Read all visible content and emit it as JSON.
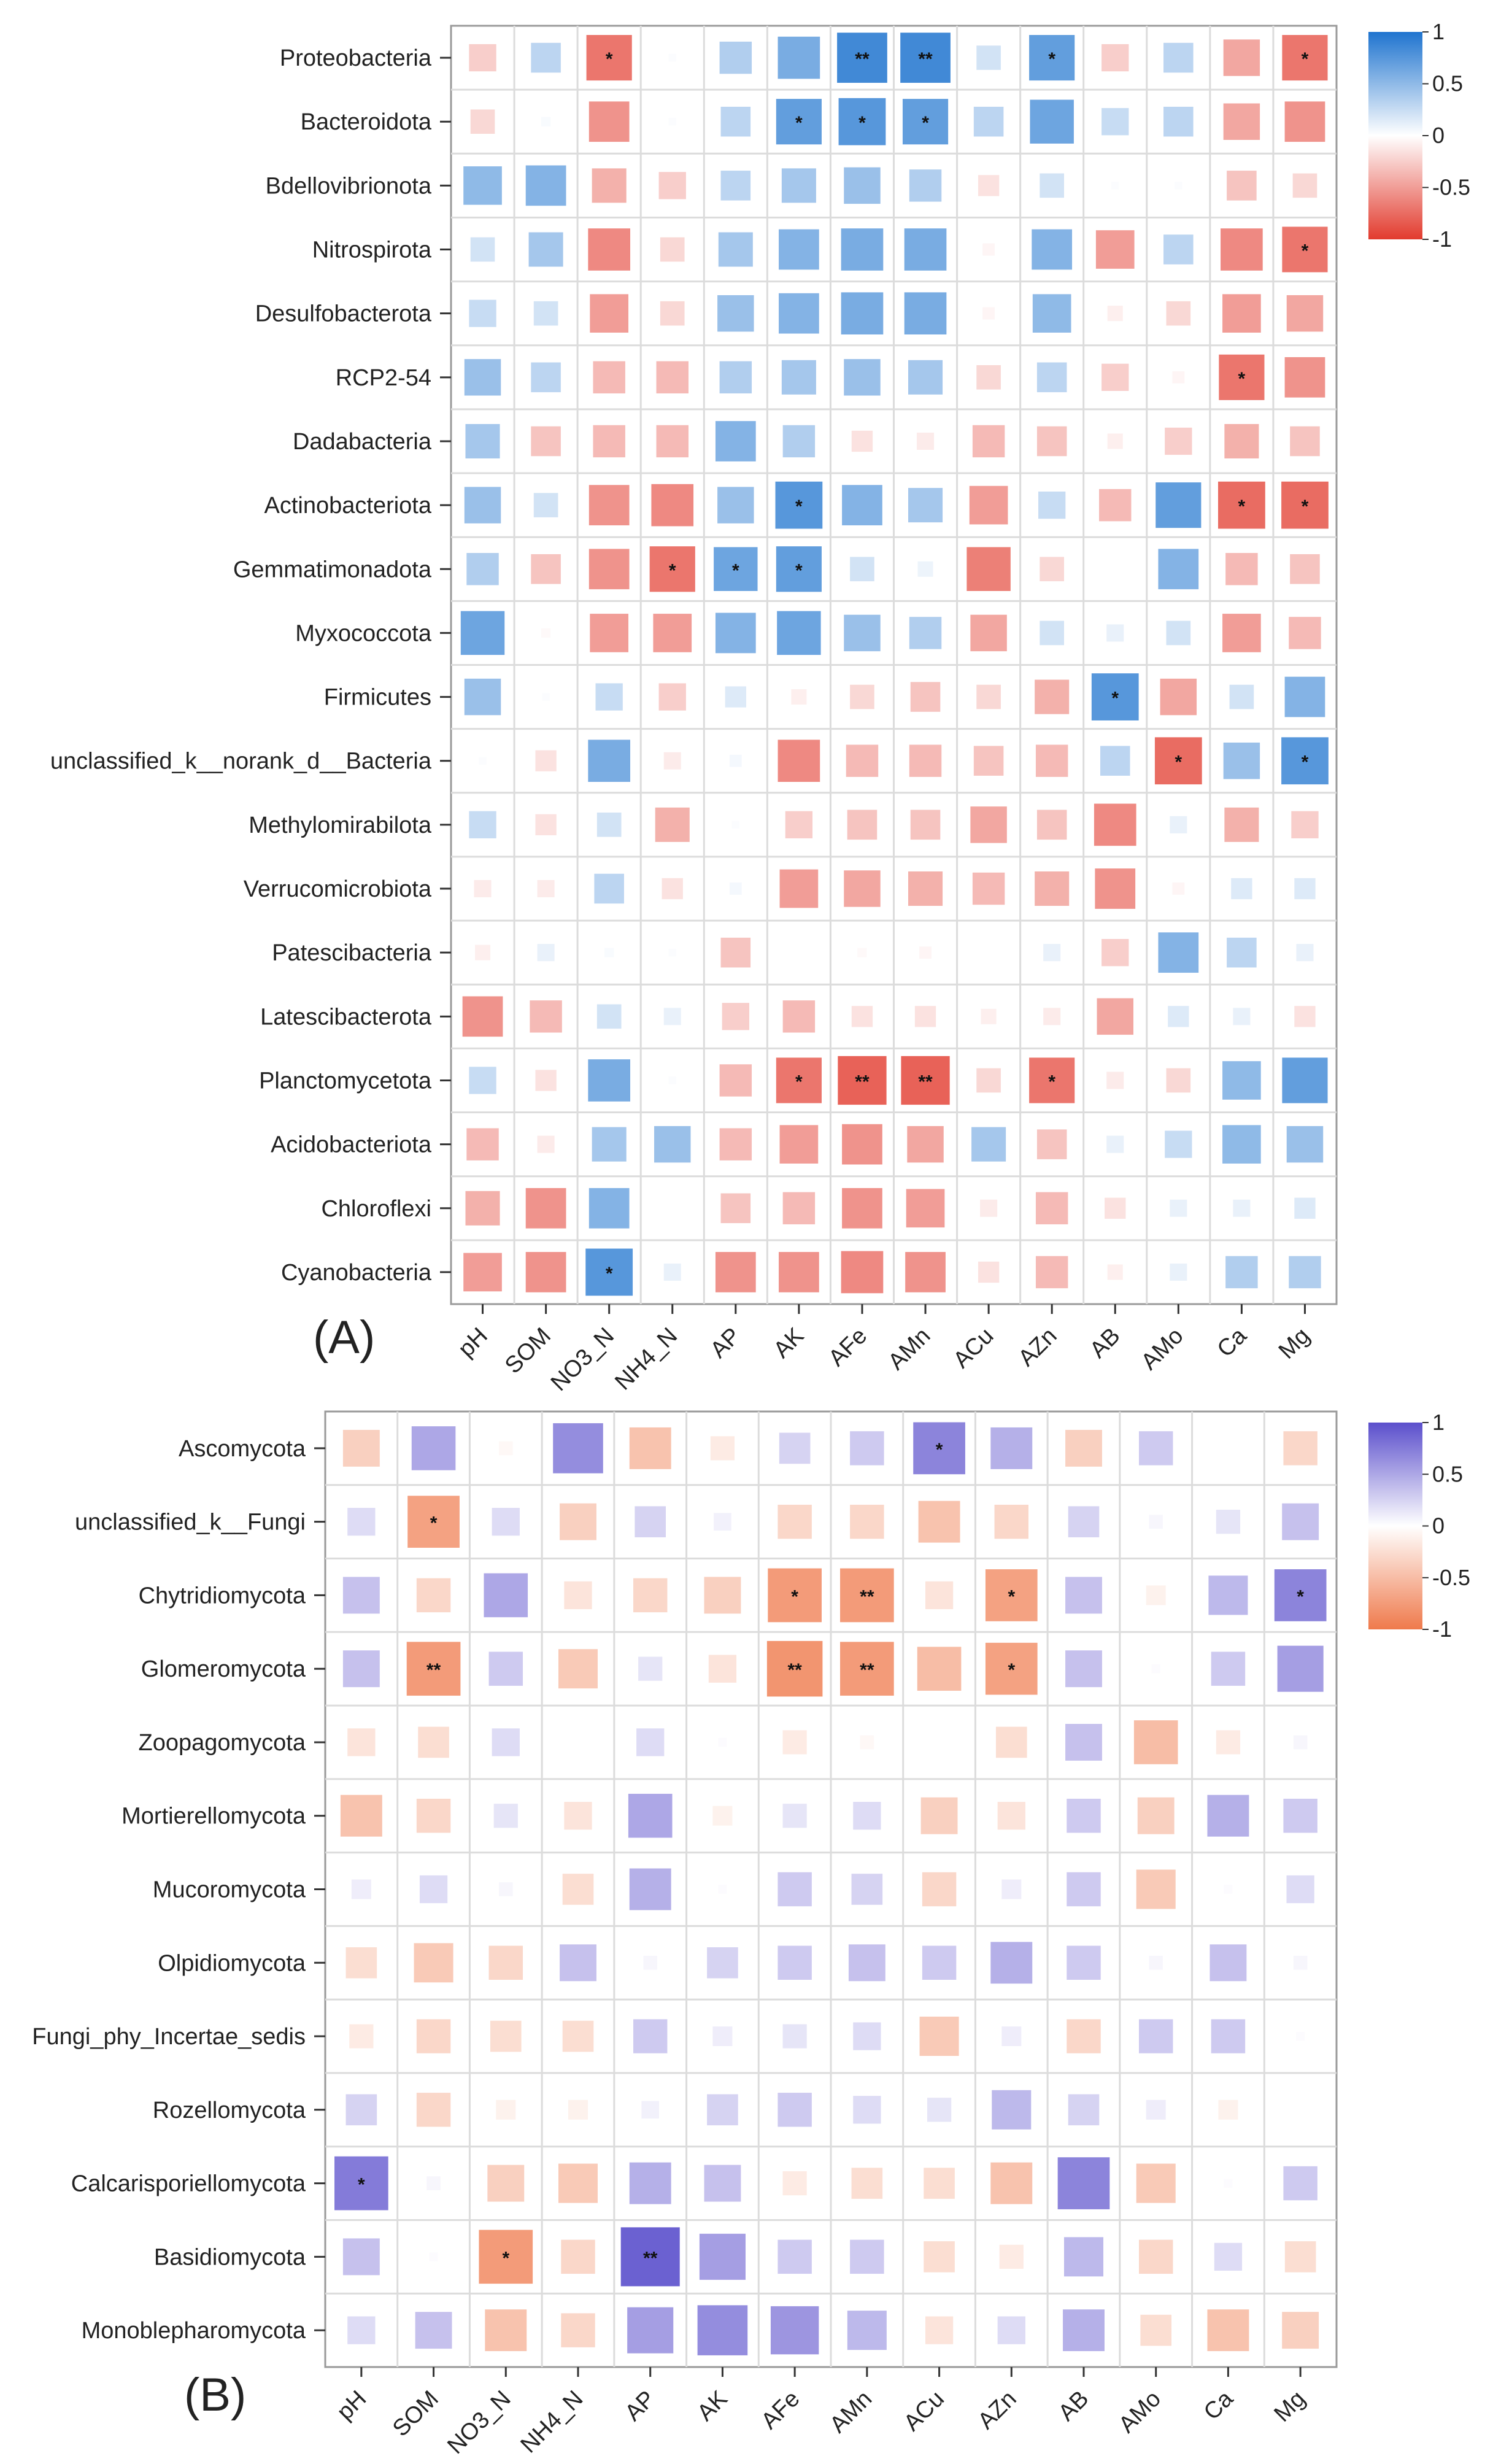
{
  "chart_data": [
    {
      "type": "heatmap",
      "title": "",
      "panel_label": "(A)",
      "xlabel": "",
      "ylabel": "",
      "color_scale": {
        "min": -1,
        "max": 1,
        "low_color": "#e23b2e",
        "mid_color": "#ffffff",
        "high_color": "#1f74cf",
        "ticks": [
          "1",
          "0.5",
          "0",
          "-0.5",
          "-1"
        ]
      },
      "columns": [
        "pH",
        "SOM",
        "NO3_N",
        "NH4_N",
        "AP",
        "AK",
        "AFe",
        "AMn",
        "ACu",
        "AZn",
        "AB",
        "AMo",
        "Ca",
        "Mg"
      ],
      "rows": [
        "Proteobacteria",
        "Bacteroidota",
        "Bdellovibrionota",
        "Nitrospirota",
        "Desulfobacterota",
        "RCP2-54",
        "Dadabacteria",
        "Actinobacteriota",
        "Gemmatimonadota",
        "Myxococcota",
        "Firmicutes",
        "unclassified_k__norank_d__Bacteria",
        "Methylomirabilota",
        "Verrucomicrobiota",
        "Patescibacteria",
        "Latescibacterota",
        "Planctomycetota",
        "Acidobacteriota",
        "Chloroflexi",
        "Cyanobacteria"
      ],
      "values": [
        [
          -0.25,
          0.3,
          -0.7,
          0.02,
          0.35,
          0.6,
          0.85,
          0.85,
          0.2,
          0.7,
          -0.25,
          0.3,
          -0.45,
          -0.7
        ],
        [
          -0.2,
          0.03,
          -0.55,
          0.02,
          0.3,
          0.7,
          0.75,
          0.7,
          0.3,
          0.65,
          0.25,
          0.3,
          -0.45,
          -0.55
        ],
        [
          0.5,
          0.55,
          -0.4,
          -0.25,
          0.3,
          0.4,
          0.45,
          0.35,
          -0.15,
          0.2,
          0.02,
          0.02,
          -0.3,
          -0.2
        ],
        [
          0.2,
          0.4,
          -0.6,
          -0.2,
          0.4,
          0.55,
          0.6,
          0.6,
          -0.05,
          0.55,
          -0.5,
          0.3,
          -0.6,
          -0.7
        ],
        [
          0.25,
          0.2,
          -0.5,
          -0.2,
          0.45,
          0.55,
          0.6,
          0.6,
          -0.05,
          0.5,
          -0.08,
          -0.2,
          -0.5,
          -0.45
        ],
        [
          0.45,
          0.3,
          -0.35,
          -0.35,
          0.35,
          0.4,
          0.45,
          0.4,
          -0.2,
          0.3,
          -0.25,
          -0.05,
          -0.7,
          -0.55
        ],
        [
          0.4,
          -0.3,
          -0.35,
          -0.35,
          0.55,
          0.35,
          -0.15,
          -0.1,
          -0.35,
          -0.3,
          -0.08,
          -0.25,
          -0.4,
          -0.3
        ],
        [
          0.45,
          0.2,
          -0.55,
          -0.6,
          0.45,
          0.75,
          0.55,
          0.4,
          -0.5,
          0.25,
          -0.35,
          0.7,
          -0.75,
          -0.75
        ],
        [
          0.35,
          -0.3,
          -0.55,
          -0.7,
          0.65,
          0.7,
          0.2,
          0.08,
          -0.65,
          -0.2,
          0.0,
          0.55,
          -0.35,
          -0.3
        ],
        [
          0.65,
          -0.03,
          -0.5,
          -0.5,
          0.55,
          0.65,
          0.45,
          0.35,
          -0.45,
          0.2,
          0.1,
          0.2,
          -0.5,
          -0.35
        ],
        [
          0.45,
          0.02,
          0.25,
          -0.25,
          0.15,
          -0.08,
          -0.2,
          -0.3,
          -0.2,
          -0.4,
          0.75,
          -0.45,
          0.2,
          0.55
        ],
        [
          0.02,
          -0.15,
          0.6,
          -0.1,
          0.05,
          -0.6,
          -0.35,
          -0.35,
          -0.3,
          -0.35,
          0.3,
          -0.75,
          0.45,
          0.75
        ],
        [
          0.25,
          -0.15,
          0.2,
          -0.4,
          0.02,
          -0.25,
          -0.3,
          -0.3,
          -0.45,
          -0.3,
          -0.6,
          0.1,
          -0.4,
          -0.25
        ],
        [
          -0.1,
          -0.1,
          0.3,
          -0.15,
          0.05,
          -0.5,
          -0.45,
          -0.4,
          -0.35,
          -0.4,
          -0.55,
          -0.05,
          0.15,
          0.15
        ],
        [
          -0.08,
          0.1,
          0.03,
          0.02,
          -0.3,
          0.0,
          -0.03,
          -0.05,
          0.0,
          0.1,
          -0.25,
          0.55,
          0.3,
          0.1
        ],
        [
          -0.55,
          -0.35,
          0.2,
          0.1,
          -0.25,
          -0.35,
          -0.15,
          -0.15,
          -0.08,
          -0.1,
          -0.45,
          0.15,
          0.1,
          -0.15
        ],
        [
          0.25,
          -0.15,
          0.6,
          0.02,
          -0.35,
          -0.7,
          -0.8,
          -0.8,
          -0.2,
          -0.7,
          -0.1,
          -0.2,
          0.5,
          0.7
        ],
        [
          -0.35,
          -0.1,
          0.4,
          0.45,
          -0.35,
          -0.5,
          -0.55,
          -0.45,
          0.4,
          -0.3,
          0.1,
          0.25,
          0.5,
          0.45
        ],
        [
          -0.4,
          -0.55,
          0.55,
          0.0,
          -0.3,
          -0.35,
          -0.55,
          -0.5,
          -0.1,
          -0.35,
          -0.15,
          0.1,
          0.1,
          0.15
        ],
        [
          -0.5,
          -0.55,
          0.75,
          0.1,
          -0.55,
          -0.55,
          -0.6,
          -0.55,
          -0.15,
          -0.35,
          -0.08,
          0.1,
          0.35,
          0.35
        ]
      ],
      "significance": [
        [
          "",
          "",
          "*",
          "",
          "",
          "",
          "**",
          "**",
          "",
          "*",
          "",
          "",
          "",
          "*"
        ],
        [
          "",
          "",
          "",
          "",
          "",
          "*",
          "*",
          "*",
          "",
          "",
          "",
          "",
          "",
          ""
        ],
        [
          "",
          "",
          "",
          "",
          "",
          "",
          "",
          "",
          "",
          "",
          "",
          "",
          "",
          ""
        ],
        [
          "",
          "",
          "",
          "",
          "",
          "",
          "",
          "",
          "",
          "",
          "",
          "",
          "",
          "*"
        ],
        [
          "",
          "",
          "",
          "",
          "",
          "",
          "",
          "",
          "",
          "",
          "",
          "",
          "",
          ""
        ],
        [
          "",
          "",
          "",
          "",
          "",
          "",
          "",
          "",
          "",
          "",
          "",
          "",
          "*",
          ""
        ],
        [
          "",
          "",
          "",
          "",
          "",
          "",
          "",
          "",
          "",
          "",
          "",
          "",
          "",
          ""
        ],
        [
          "",
          "",
          "",
          "",
          "",
          "*",
          "",
          "",
          "",
          "",
          "",
          "",
          "*",
          "*"
        ],
        [
          "",
          "",
          "",
          "*",
          "*",
          "*",
          "",
          "",
          "",
          "",
          "",
          "",
          "",
          ""
        ],
        [
          "",
          "",
          "",
          "",
          "",
          "",
          "",
          "",
          "",
          "",
          "",
          "",
          "",
          ""
        ],
        [
          "",
          "",
          "",
          "",
          "",
          "",
          "",
          "",
          "",
          "",
          "*",
          "",
          "",
          ""
        ],
        [
          "",
          "",
          "",
          "",
          "",
          "",
          "",
          "",
          "",
          "",
          "",
          "*",
          "",
          "*"
        ],
        [
          "",
          "",
          "",
          "",
          "",
          "",
          "",
          "",
          "",
          "",
          "",
          "",
          "",
          ""
        ],
        [
          "",
          "",
          "",
          "",
          "",
          "",
          "",
          "",
          "",
          "",
          "",
          "",
          "",
          ""
        ],
        [
          "",
          "",
          "",
          "",
          "",
          "",
          "",
          "",
          "",
          "",
          "",
          "",
          "",
          ""
        ],
        [
          "",
          "",
          "",
          "",
          "",
          "",
          "",
          "",
          "",
          "",
          "",
          "",
          "",
          ""
        ],
        [
          "",
          "",
          "",
          "",
          "",
          "*",
          "**",
          "**",
          "",
          "*",
          "",
          "",
          "",
          ""
        ],
        [
          "",
          "",
          "",
          "",
          "",
          "",
          "",
          "",
          "",
          "",
          "",
          "",
          "",
          ""
        ],
        [
          "",
          "",
          "",
          "",
          "",
          "",
          "",
          "",
          "",
          "",
          "",
          "",
          "",
          ""
        ],
        [
          "",
          "",
          "*",
          "",
          "",
          "",
          "",
          "",
          "",
          "",
          "",
          "",
          "",
          ""
        ]
      ]
    },
    {
      "type": "heatmap",
      "title": "",
      "panel_label": "(B)",
      "xlabel": "",
      "ylabel": "",
      "color_scale": {
        "min": -1,
        "max": 1,
        "low_color": "#ef7a4c",
        "mid_color": "#ffffff",
        "high_color": "#5b4fcc",
        "ticks": [
          "1",
          "0.5",
          "0",
          "-0.5",
          "-1"
        ]
      },
      "columns": [
        "pH",
        "SOM",
        "NO3_N",
        "NH4_N",
        "AP",
        "AK",
        "AFe",
        "AMn",
        "ACu",
        "AZn",
        "AB",
        "AMo",
        "Ca",
        "Mg"
      ],
      "rows": [
        "Ascomycota",
        "unclassified_k__Fungi",
        "Chytridiomycota",
        "Glomeromycota",
        "Zoopagomycota",
        "Mortierellomycota",
        "Mucoromycota",
        "Olpidiomycota",
        "Fungi_phy_Incertae_sedis",
        "Rozellomycota",
        "Calcarisporiellomycota",
        "Basidiomycota",
        "Monoblepharomycota"
      ],
      "values": [
        [
          -0.35,
          0.5,
          -0.05,
          0.65,
          -0.45,
          -0.15,
          0.25,
          0.3,
          0.7,
          0.45,
          -0.35,
          0.3,
          0.0,
          -0.3
        ],
        [
          0.2,
          -0.7,
          0.2,
          -0.35,
          0.25,
          0.08,
          -0.3,
          -0.3,
          -0.45,
          -0.3,
          0.25,
          0.05,
          0.15,
          0.35
        ],
        [
          0.35,
          -0.3,
          0.5,
          -0.2,
          -0.3,
          -0.35,
          -0.75,
          -0.75,
          -0.2,
          -0.7,
          0.35,
          -0.1,
          0.4,
          0.7
        ],
        [
          0.35,
          -0.75,
          0.3,
          -0.4,
          0.15,
          -0.2,
          -0.8,
          -0.75,
          -0.5,
          -0.7,
          0.35,
          0.02,
          0.3,
          0.55
        ],
        [
          -0.2,
          -0.25,
          0.2,
          0.0,
          0.2,
          0.02,
          -0.15,
          -0.05,
          0.0,
          -0.25,
          0.35,
          -0.5,
          -0.15,
          0.05
        ],
        [
          -0.45,
          -0.3,
          0.15,
          -0.2,
          0.5,
          -0.1,
          0.15,
          0.2,
          -0.35,
          -0.2,
          0.3,
          -0.35,
          0.45,
          0.3
        ],
        [
          0.1,
          0.2,
          0.05,
          -0.25,
          0.45,
          0.02,
          0.3,
          0.25,
          -0.3,
          0.1,
          0.3,
          -0.4,
          0.02,
          0.2
        ],
        [
          -0.25,
          -0.4,
          -0.3,
          0.35,
          0.05,
          0.25,
          0.3,
          0.35,
          0.3,
          0.45,
          0.3,
          0.05,
          0.35,
          0.05
        ],
        [
          -0.15,
          -0.3,
          -0.25,
          -0.25,
          0.3,
          0.1,
          0.15,
          0.2,
          -0.4,
          0.1,
          -0.3,
          0.3,
          0.3,
          0.02
        ],
        [
          0.25,
          -0.3,
          -0.1,
          -0.1,
          0.08,
          0.25,
          0.3,
          0.2,
          0.15,
          0.4,
          0.25,
          0.1,
          -0.1,
          0.0
        ],
        [
          0.75,
          0.05,
          -0.35,
          -0.4,
          0.45,
          0.35,
          -0.15,
          -0.25,
          -0.25,
          -0.45,
          0.7,
          -0.4,
          0.02,
          0.3
        ],
        [
          0.35,
          0.02,
          -0.75,
          -0.3,
          0.9,
          0.55,
          0.3,
          0.3,
          -0.25,
          -0.15,
          0.4,
          -0.3,
          0.2,
          -0.25
        ],
        [
          0.2,
          0.35,
          -0.45,
          -0.3,
          0.55,
          0.65,
          0.6,
          0.4,
          -0.2,
          0.2,
          0.45,
          -0.25,
          -0.45,
          -0.35
        ]
      ],
      "significance": [
        [
          "",
          "",
          "",
          "",
          "",
          "",
          "",
          "",
          "*",
          "",
          "",
          "",
          "",
          ""
        ],
        [
          "",
          "*",
          "",
          "",
          "",
          "",
          "",
          "",
          "",
          "",
          "",
          "",
          "",
          ""
        ],
        [
          "",
          "",
          "",
          "",
          "",
          "",
          "*",
          "**",
          "",
          "*",
          "",
          "",
          "",
          "*"
        ],
        [
          "",
          "**",
          "",
          "",
          "",
          "",
          "**",
          "**",
          "",
          "*",
          "",
          "",
          "",
          ""
        ],
        [
          "",
          "",
          "",
          "",
          "",
          "",
          "",
          "",
          "",
          "",
          "",
          "",
          "",
          ""
        ],
        [
          "",
          "",
          "",
          "",
          "",
          "",
          "",
          "",
          "",
          "",
          "",
          "",
          "",
          ""
        ],
        [
          "",
          "",
          "",
          "",
          "",
          "",
          "",
          "",
          "",
          "",
          "",
          "",
          "",
          ""
        ],
        [
          "",
          "",
          "",
          "",
          "",
          "",
          "",
          "",
          "",
          "",
          "",
          "",
          "",
          ""
        ],
        [
          "",
          "",
          "",
          "",
          "",
          "",
          "",
          "",
          "",
          "",
          "",
          "",
          "",
          ""
        ],
        [
          "",
          "",
          "",
          "",
          "",
          "",
          "",
          "",
          "",
          "",
          "",
          "",
          "",
          ""
        ],
        [
          "*",
          "",
          "",
          "",
          "",
          "",
          "",
          "",
          "",
          "",
          "",
          "",
          "",
          ""
        ],
        [
          "",
          "",
          "*",
          "",
          "**",
          "",
          "",
          "",
          "",
          "",
          "",
          "",
          "",
          ""
        ],
        [
          "",
          "",
          "",
          "",
          "",
          "",
          "",
          "",
          "",
          "",
          "",
          "",
          "",
          ""
        ]
      ]
    }
  ]
}
